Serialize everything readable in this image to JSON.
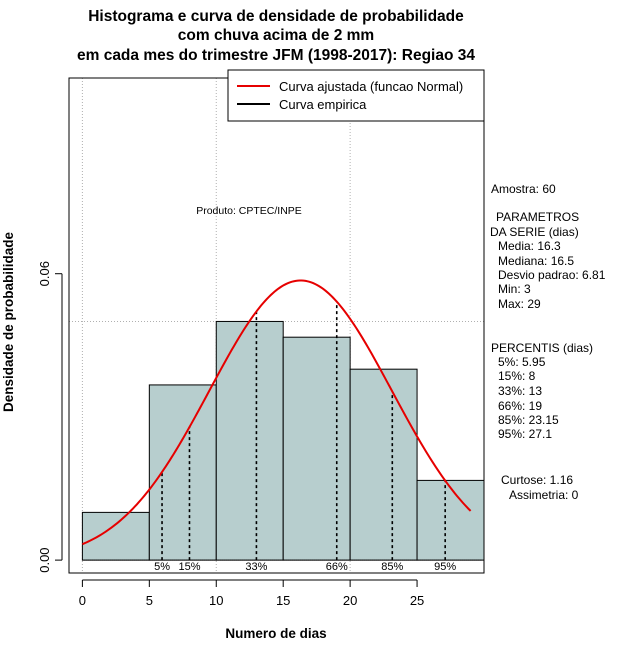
{
  "chart_data": {
    "type": "histogram",
    "title": [
      "Histograma e curva de densidade de probabilidade",
      "com chuva acima de 2 mm",
      "em cada mes do trimestre JFM (1998-2017): Regiao 34"
    ],
    "xlabel": "Numero de dias",
    "ylabel": "Densidade de probabilidade",
    "xlim": [
      -1,
      30
    ],
    "ylim": [
      -0.0027,
      0.101
    ],
    "x_ticks": [
      0,
      5,
      10,
      15,
      20,
      25
    ],
    "y_ticks": [
      0.0,
      0.06
    ],
    "y_tick_labels": [
      "0.00",
      "0.06"
    ],
    "grid_x": [
      0,
      10,
      20
    ],
    "grid_y": [
      0.05
    ],
    "bins": [
      {
        "from": 0,
        "to": 5,
        "density": 0.01
      },
      {
        "from": 5,
        "to": 10,
        "density": 0.0367
      },
      {
        "from": 10,
        "to": 15,
        "density": 0.05
      },
      {
        "from": 15,
        "to": 20,
        "density": 0.0467
      },
      {
        "from": 20,
        "to": 25,
        "density": 0.04
      },
      {
        "from": 25,
        "to": 30,
        "density": 0.0167
      }
    ],
    "bar_color": "#b7cece",
    "normal_fit": {
      "mean": 16.3,
      "sd": 6.81,
      "x_from": 0,
      "x_to": 29,
      "color": "#e60000"
    },
    "percentile_lines": [
      {
        "label": "5%",
        "x": 5.95
      },
      {
        "label": "15%",
        "x": 8
      },
      {
        "label": "33%",
        "x": 13
      },
      {
        "label": "66%",
        "x": 19
      },
      {
        "label": "85%",
        "x": 23.15
      },
      {
        "label": "95%",
        "x": 27.1
      }
    ],
    "legend": {
      "position": "top-right",
      "entries": [
        {
          "label": "Curva ajustada (funcao Normal)",
          "color": "#e60000"
        },
        {
          "label": "Curva empirica",
          "color": "#000000"
        }
      ]
    }
  },
  "annotation": "Produto: CPTEC/INPE",
  "side_panel": {
    "amostra": "Amostra: 60",
    "parametros": [
      "PARAMETROS",
      "DA SERIE (dias)",
      "Media: 16.3",
      "Mediana: 16.5",
      "Desvio padrao: 6.81",
      "Min: 3",
      "Max: 29"
    ],
    "percentis": [
      "PERCENTIS (dias)",
      "5%: 5.95",
      "15%: 8",
      "33%: 13",
      "66%: 19",
      "85%: 23.15",
      "95%: 27.1"
    ],
    "curtose": "Curtose: 1.16",
    "assimetria": "Assimetria: 0"
  }
}
